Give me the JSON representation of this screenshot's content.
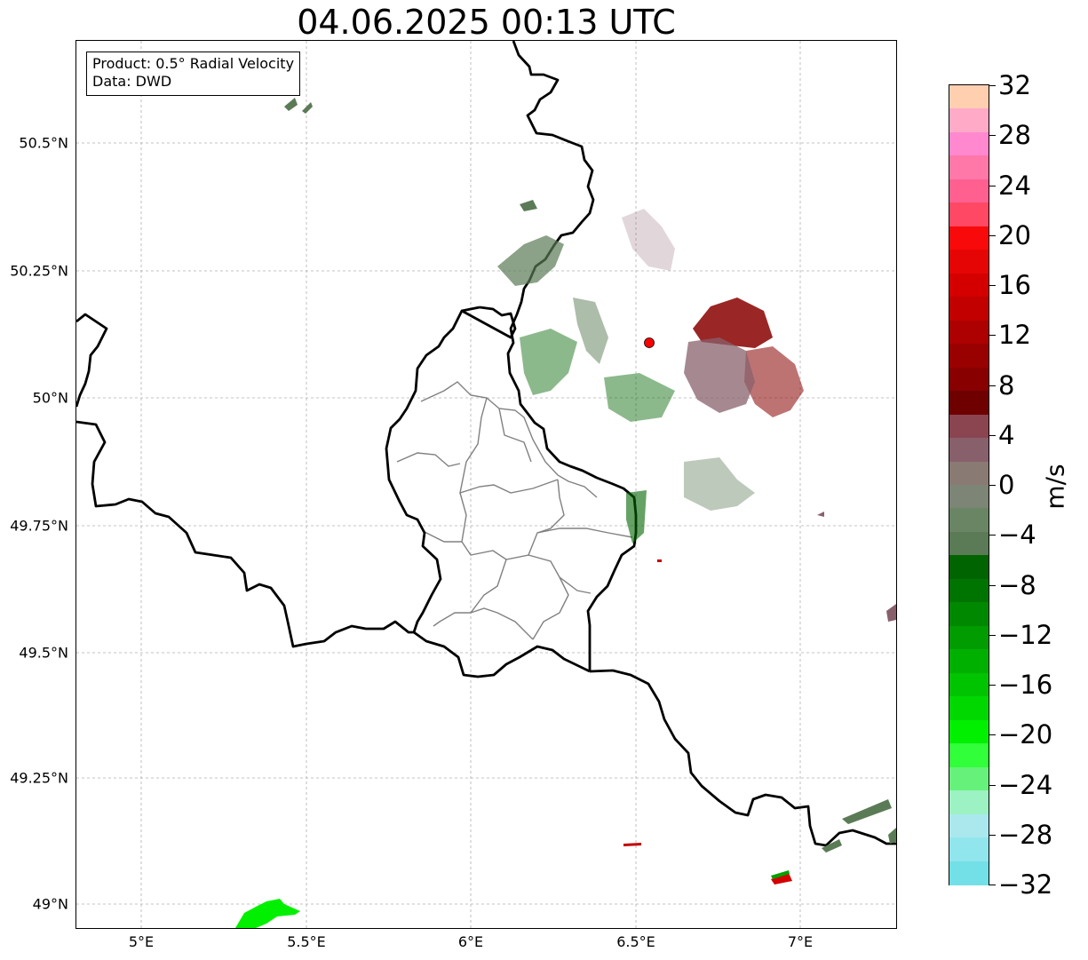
{
  "title": "04.06.2025 00:13 UTC",
  "info_box": {
    "product": "Product: 0.5° Radial Velocity",
    "data_source": "Data: DWD"
  },
  "x_ticks": [
    "5°E",
    "5.5°E",
    "6°E",
    "6.5°E",
    "7°E"
  ],
  "y_ticks": [
    "50.5°N",
    "50.25°N",
    "50°N",
    "49.75°N",
    "49.5°N",
    "49.25°N",
    "49°N"
  ],
  "colorbar": {
    "unit": "m/s",
    "min": -32,
    "max": 32,
    "step": 4,
    "tick_labels": [
      "32",
      "28",
      "24",
      "20",
      "16",
      "12",
      "8",
      "4",
      "0",
      "−4",
      "−8",
      "−12",
      "−16",
      "−20",
      "−24",
      "−28",
      "−32"
    ],
    "colors_top_to_bottom": [
      "#ffcfb0",
      "#ffaac7",
      "#ff88cf",
      "#ff78a8",
      "#ff6090",
      "#ff4864",
      "#f80a0a",
      "#e60505",
      "#d40000",
      "#c20000",
      "#ad0000",
      "#990000",
      "#880000",
      "#6e0000",
      "#8a4550",
      "#88606c",
      "#8a7a74",
      "#7c8576",
      "#6a8564",
      "#5a7b56",
      "#006400",
      "#007400",
      "#008800",
      "#009c00",
      "#00b000",
      "#00c400",
      "#00d800",
      "#00f000",
      "#30ff3a",
      "#66f27a",
      "#9cf2c2",
      "#aae8ee",
      "#90e6ec",
      "#72e0e6"
    ]
  },
  "map": {
    "extent_lon": [
      4.8,
      7.3
    ],
    "extent_lat": [
      48.95,
      50.7
    ],
    "radar_site": {
      "lon": 6.547,
      "lat": 50.11,
      "color": "#ff0000"
    },
    "gridlines": true
  },
  "colors": {
    "border": "#000000",
    "admin_border": "#808080",
    "grid": "#b0b0b0",
    "inbound_dark": "#006400",
    "inbound_gray": "#5a7b56",
    "outbound_dark": "#880000",
    "outbound_gray": "#88606c",
    "strong_inbound": "#00f000"
  }
}
